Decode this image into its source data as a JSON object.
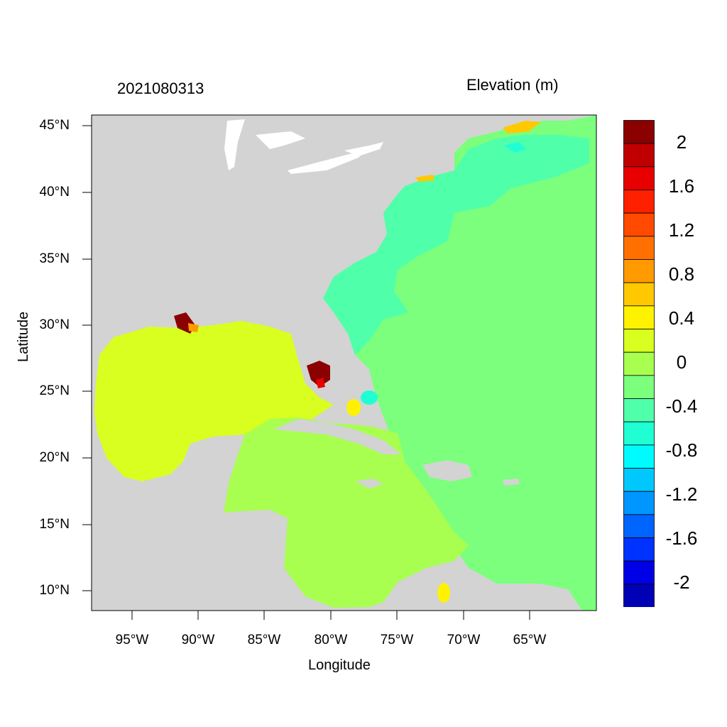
{
  "title_left": "2021080313",
  "title_right": "Elevation (m)",
  "xlabel": "Longitude",
  "ylabel": "Latitude",
  "y_ticks": [
    "45°N",
    "40°N",
    "35°N",
    "30°N",
    "25°N",
    "20°N",
    "15°N",
    "10°N"
  ],
  "x_ticks": [
    "95°W",
    "90°W",
    "85°W",
    "80°W",
    "75°W",
    "70°W",
    "65°W"
  ],
  "colorbar": {
    "labels": [
      "2",
      "1.6",
      "1.2",
      "0.8",
      "0.4",
      "0",
      "-0.4",
      "-0.8",
      "-1.2",
      "-1.6",
      "-2"
    ],
    "colors": [
      "#8b0000",
      "#c00000",
      "#e80000",
      "#ff2000",
      "#ff4a00",
      "#ff7000",
      "#ff9a00",
      "#ffc800",
      "#fff200",
      "#d8ff20",
      "#a8ff50",
      "#7cff7c",
      "#50ffaa",
      "#20ffd4",
      "#00fbff",
      "#00c8ff",
      "#0096ff",
      "#0064ff",
      "#0032ff",
      "#0000e6",
      "#0000b4"
    ]
  },
  "colors": {
    "land": "#d3d3d3",
    "lakes": "#ffffff",
    "gulf": "#d8ff20",
    "atlantic": "#7cff7c",
    "caribbean": "#a8ff50",
    "shelf": "#50ffaa"
  }
}
